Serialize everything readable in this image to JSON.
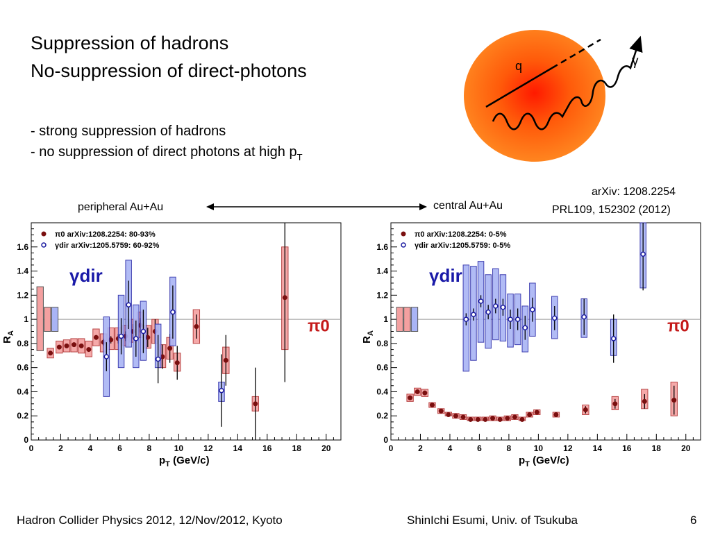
{
  "slide": {
    "title_line1": "Suppression of hadrons",
    "title_line2": "No-suppression of direct-photons",
    "bullet1": "- strong suppression of hadrons",
    "bullet2": "- no suppression of direct photons at high p",
    "bullet2_sub": "T",
    "diagram": {
      "q_label": "q",
      "gamma_label": "γ"
    },
    "ref_line1": "arXiv: 1208.2254",
    "ref_line2": "PRL109, 152302 (2012)",
    "label_left": "peripheral Au+Au",
    "label_right": "central Au+Au",
    "footer_left": "Hadron Collider Physics 2012, 12/Nov/2012, Kyoto",
    "footer_center": "ShinIchi Esumi, Univ. of Tsukuba",
    "page_number": "6"
  },
  "chart_data": [
    {
      "type": "scatter",
      "title": "",
      "xlabel": "p_T (GeV/c)",
      "ylabel": "R_AA",
      "xlim": [
        0,
        21
      ],
      "ylim": [
        0,
        1.8
      ],
      "xticks": [
        "0",
        "2",
        "4",
        "6",
        "8",
        "10",
        "12",
        "14",
        "16",
        "18",
        "20"
      ],
      "yticks": [
        "0",
        "0.2",
        "0.4",
        "0.6",
        "0.8",
        "1",
        "1.2",
        "1.4",
        "1.6"
      ],
      "reference_line": 1,
      "grid": false,
      "legend_position": "top-left",
      "annotations": {
        "photon": "γdir",
        "pion": "π0"
      },
      "global_uncertainty_boxes": [
        {
          "x": 0.6,
          "lo": 0.74,
          "hi": 1.27,
          "color": "#f4a0a0"
        },
        {
          "x": 1.1,
          "lo": 0.9,
          "hi": 1.1,
          "color": "#f4a0a0"
        },
        {
          "x": 1.6,
          "lo": 0.9,
          "hi": 1.1,
          "color": "#a9b4f5"
        }
      ],
      "series": [
        {
          "name": "π0 arXiv:1208.2254: 80-93%",
          "marker": "filled-circle",
          "color": "#7a0f0f",
          "box_color": "#f4a0a0",
          "points": [
            {
              "x": 1.3,
              "y": 0.72,
              "err": 0.01,
              "syslo": 0.68,
              "syshi": 0.76
            },
            {
              "x": 1.9,
              "y": 0.77,
              "err": 0.01,
              "syslo": 0.72,
              "syshi": 0.82
            },
            {
              "x": 2.4,
              "y": 0.78,
              "err": 0.01,
              "syslo": 0.73,
              "syshi": 0.83
            },
            {
              "x": 2.9,
              "y": 0.79,
              "err": 0.01,
              "syslo": 0.73,
              "syshi": 0.84
            },
            {
              "x": 3.4,
              "y": 0.78,
              "err": 0.01,
              "syslo": 0.72,
              "syshi": 0.84
            },
            {
              "x": 3.9,
              "y": 0.75,
              "err": 0.01,
              "syslo": 0.69,
              "syshi": 0.82
            },
            {
              "x": 4.4,
              "y": 0.85,
              "err": 0.02,
              "syslo": 0.78,
              "syshi": 0.92
            },
            {
              "x": 4.9,
              "y": 0.81,
              "err": 0.03,
              "syslo": 0.73,
              "syshi": 0.88
            },
            {
              "x": 5.4,
              "y": 0.83,
              "err": 0.03,
              "syslo": 0.75,
              "syshi": 0.93
            },
            {
              "x": 5.9,
              "y": 0.84,
              "err": 0.04,
              "syslo": 0.75,
              "syshi": 0.93
            },
            {
              "x": 6.4,
              "y": 0.86,
              "err": 0.04,
              "syslo": 0.78,
              "syshi": 0.95
            },
            {
              "x": 6.9,
              "y": 0.9,
              "err": 0.06,
              "syslo": 0.81,
              "syshi": 1.0
            },
            {
              "x": 7.4,
              "y": 0.95,
              "err": 0.06,
              "syslo": 0.85,
              "syshi": 1.06
            },
            {
              "x": 7.9,
              "y": 0.85,
              "err": 0.08,
              "syslo": 0.76,
              "syshi": 0.95
            },
            {
              "x": 8.4,
              "y": 0.9,
              "err": 0.1,
              "syslo": 0.8,
              "syshi": 1.0
            },
            {
              "x": 8.9,
              "y": 0.69,
              "err": 0.1,
              "syslo": 0.6,
              "syshi": 0.79
            },
            {
              "x": 9.4,
              "y": 0.76,
              "err": 0.12,
              "syslo": 0.67,
              "syshi": 0.85
            },
            {
              "x": 9.9,
              "y": 0.64,
              "err": 0.14,
              "syslo": 0.57,
              "syshi": 0.72
            },
            {
              "x": 11.2,
              "y": 0.94,
              "err": 0.1,
              "syslo": 0.8,
              "syshi": 1.08
            },
            {
              "x": 13.2,
              "y": 0.66,
              "err": 0.21,
              "syslo": 0.55,
              "syshi": 0.77
            },
            {
              "x": 15.2,
              "y": 0.3,
              "err": 0.3,
              "syslo": 0.24,
              "syshi": 0.36
            },
            {
              "x": 17.2,
              "y": 1.18,
              "err": 0.7,
              "syslo": 0.75,
              "syshi": 1.6
            }
          ]
        },
        {
          "name": "γdir arXiv:1205.5759: 60-92%",
          "marker": "open-circle",
          "color": "#1a1aa0",
          "box_color": "#a9b4f5",
          "points": [
            {
              "x": 5.1,
              "y": 0.69,
              "err": 0.12,
              "syslo": 0.36,
              "syshi": 1.02
            },
            {
              "x": 6.1,
              "y": 0.86,
              "err": 0.15,
              "syslo": 0.6,
              "syshi": 1.2
            },
            {
              "x": 6.6,
              "y": 1.12,
              "err": 0.2,
              "syslo": 0.77,
              "syshi": 1.49
            },
            {
              "x": 7.1,
              "y": 0.84,
              "err": 0.15,
              "syslo": 0.6,
              "syshi": 1.12
            },
            {
              "x": 7.6,
              "y": 0.9,
              "err": 0.18,
              "syslo": 0.66,
              "syshi": 1.15
            },
            {
              "x": 8.6,
              "y": 0.67,
              "err": 0.2,
              "syslo": 0.6,
              "syshi": 0.96
            },
            {
              "x": 9.6,
              "y": 1.06,
              "err": 0.22,
              "syslo": 0.78,
              "syshi": 1.35
            },
            {
              "x": 12.9,
              "y": 0.41,
              "err": 0.3,
              "syslo": 0.32,
              "syshi": 0.48
            }
          ]
        }
      ]
    },
    {
      "type": "scatter",
      "title": "",
      "xlabel": "p_T (GeV/c)",
      "ylabel": "R_AA",
      "xlim": [
        0,
        21
      ],
      "ylim": [
        0,
        1.8
      ],
      "xticks": [
        "0",
        "2",
        "4",
        "6",
        "8",
        "10",
        "12",
        "14",
        "16",
        "18",
        "20"
      ],
      "yticks": [
        "0",
        "0.2",
        "0.4",
        "0.6",
        "0.8",
        "1",
        "1.2",
        "1.4",
        "1.6"
      ],
      "reference_line": 1,
      "grid": false,
      "legend_position": "top-left",
      "annotations": {
        "photon": "γdir",
        "pion": "π0"
      },
      "global_uncertainty_boxes": [
        {
          "x": 0.6,
          "lo": 0.9,
          "hi": 1.1,
          "color": "#f4a0a0"
        },
        {
          "x": 1.1,
          "lo": 0.9,
          "hi": 1.1,
          "color": "#f4a0a0"
        },
        {
          "x": 1.6,
          "lo": 0.9,
          "hi": 1.1,
          "color": "#a9b4f5"
        }
      ],
      "series": [
        {
          "name": "π0 arXiv:1208.2254: 0-5%",
          "marker": "filled-circle",
          "color": "#7a0f0f",
          "box_color": "#f4a0a0",
          "points": [
            {
              "x": 1.3,
              "y": 0.35,
              "err": 0.01,
              "syslo": 0.32,
              "syshi": 0.38
            },
            {
              "x": 1.8,
              "y": 0.4,
              "err": 0.01,
              "syslo": 0.37,
              "syshi": 0.43
            },
            {
              "x": 2.3,
              "y": 0.39,
              "err": 0.01,
              "syslo": 0.36,
              "syshi": 0.42
            },
            {
              "x": 2.8,
              "y": 0.29,
              "err": 0.01,
              "syslo": 0.27,
              "syshi": 0.31
            },
            {
              "x": 3.4,
              "y": 0.24,
              "err": 0.01,
              "syslo": 0.22,
              "syshi": 0.26
            },
            {
              "x": 3.9,
              "y": 0.21,
              "err": 0.01,
              "syslo": 0.2,
              "syshi": 0.23
            },
            {
              "x": 4.4,
              "y": 0.2,
              "err": 0.01,
              "syslo": 0.18,
              "syshi": 0.22
            },
            {
              "x": 4.9,
              "y": 0.19,
              "err": 0.01,
              "syslo": 0.17,
              "syshi": 0.21
            },
            {
              "x": 5.4,
              "y": 0.17,
              "err": 0.01,
              "syslo": 0.16,
              "syshi": 0.19
            },
            {
              "x": 5.9,
              "y": 0.17,
              "err": 0.01,
              "syslo": 0.16,
              "syshi": 0.19
            },
            {
              "x": 6.4,
              "y": 0.17,
              "err": 0.01,
              "syslo": 0.16,
              "syshi": 0.19
            },
            {
              "x": 6.9,
              "y": 0.18,
              "err": 0.01,
              "syslo": 0.16,
              "syshi": 0.2
            },
            {
              "x": 7.4,
              "y": 0.17,
              "err": 0.01,
              "syslo": 0.16,
              "syshi": 0.19
            },
            {
              "x": 7.9,
              "y": 0.18,
              "err": 0.01,
              "syslo": 0.16,
              "syshi": 0.2
            },
            {
              "x": 8.4,
              "y": 0.19,
              "err": 0.01,
              "syslo": 0.17,
              "syshi": 0.21
            },
            {
              "x": 8.9,
              "y": 0.17,
              "err": 0.01,
              "syslo": 0.16,
              "syshi": 0.19
            },
            {
              "x": 9.4,
              "y": 0.21,
              "err": 0.02,
              "syslo": 0.19,
              "syshi": 0.23
            },
            {
              "x": 9.9,
              "y": 0.23,
              "err": 0.02,
              "syslo": 0.21,
              "syshi": 0.25
            },
            {
              "x": 11.2,
              "y": 0.21,
              "err": 0.02,
              "syslo": 0.19,
              "syshi": 0.23
            },
            {
              "x": 13.2,
              "y": 0.25,
              "err": 0.03,
              "syslo": 0.21,
              "syshi": 0.29
            },
            {
              "x": 15.2,
              "y": 0.3,
              "err": 0.04,
              "syslo": 0.25,
              "syshi": 0.36
            },
            {
              "x": 17.2,
              "y": 0.32,
              "err": 0.06,
              "syslo": 0.26,
              "syshi": 0.42
            },
            {
              "x": 19.2,
              "y": 0.33,
              "err": 0.12,
              "syslo": 0.2,
              "syshi": 0.48
            }
          ]
        },
        {
          "name": "γdir arXiv:1205.5759: 0-5%",
          "marker": "open-circle",
          "color": "#1a1aa0",
          "box_color": "#a9b4f5",
          "points": [
            {
              "x": 5.1,
              "y": 1.0,
              "err": 0.05,
              "syslo": 0.57,
              "syshi": 1.45
            },
            {
              "x": 5.6,
              "y": 1.04,
              "err": 0.05,
              "syslo": 0.66,
              "syshi": 1.44
            },
            {
              "x": 6.1,
              "y": 1.15,
              "err": 0.05,
              "syslo": 0.81,
              "syshi": 1.48
            },
            {
              "x": 6.6,
              "y": 1.06,
              "err": 0.06,
              "syslo": 0.76,
              "syshi": 1.37
            },
            {
              "x": 7.1,
              "y": 1.11,
              "err": 0.06,
              "syslo": 0.83,
              "syshi": 1.42
            },
            {
              "x": 7.6,
              "y": 1.1,
              "err": 0.07,
              "syslo": 0.82,
              "syshi": 1.37
            },
            {
              "x": 8.1,
              "y": 1.0,
              "err": 0.08,
              "syslo": 0.77,
              "syshi": 1.21
            },
            {
              "x": 8.6,
              "y": 1.0,
              "err": 0.09,
              "syslo": 0.79,
              "syshi": 1.21
            },
            {
              "x": 9.1,
              "y": 0.93,
              "err": 0.1,
              "syslo": 0.73,
              "syshi": 1.11
            },
            {
              "x": 9.6,
              "y": 1.08,
              "err": 0.1,
              "syslo": 0.86,
              "syshi": 1.3
            },
            {
              "x": 11.1,
              "y": 1.01,
              "err": 0.1,
              "syslo": 0.84,
              "syshi": 1.19
            },
            {
              "x": 13.1,
              "y": 1.02,
              "err": 0.15,
              "syslo": 0.85,
              "syshi": 1.17
            },
            {
              "x": 15.1,
              "y": 0.84,
              "err": 0.2,
              "syslo": 0.7,
              "syshi": 1.0
            },
            {
              "x": 17.1,
              "y": 1.54,
              "err": 0.3,
              "syslo": 1.26,
              "syshi": 1.8
            }
          ]
        }
      ]
    }
  ]
}
